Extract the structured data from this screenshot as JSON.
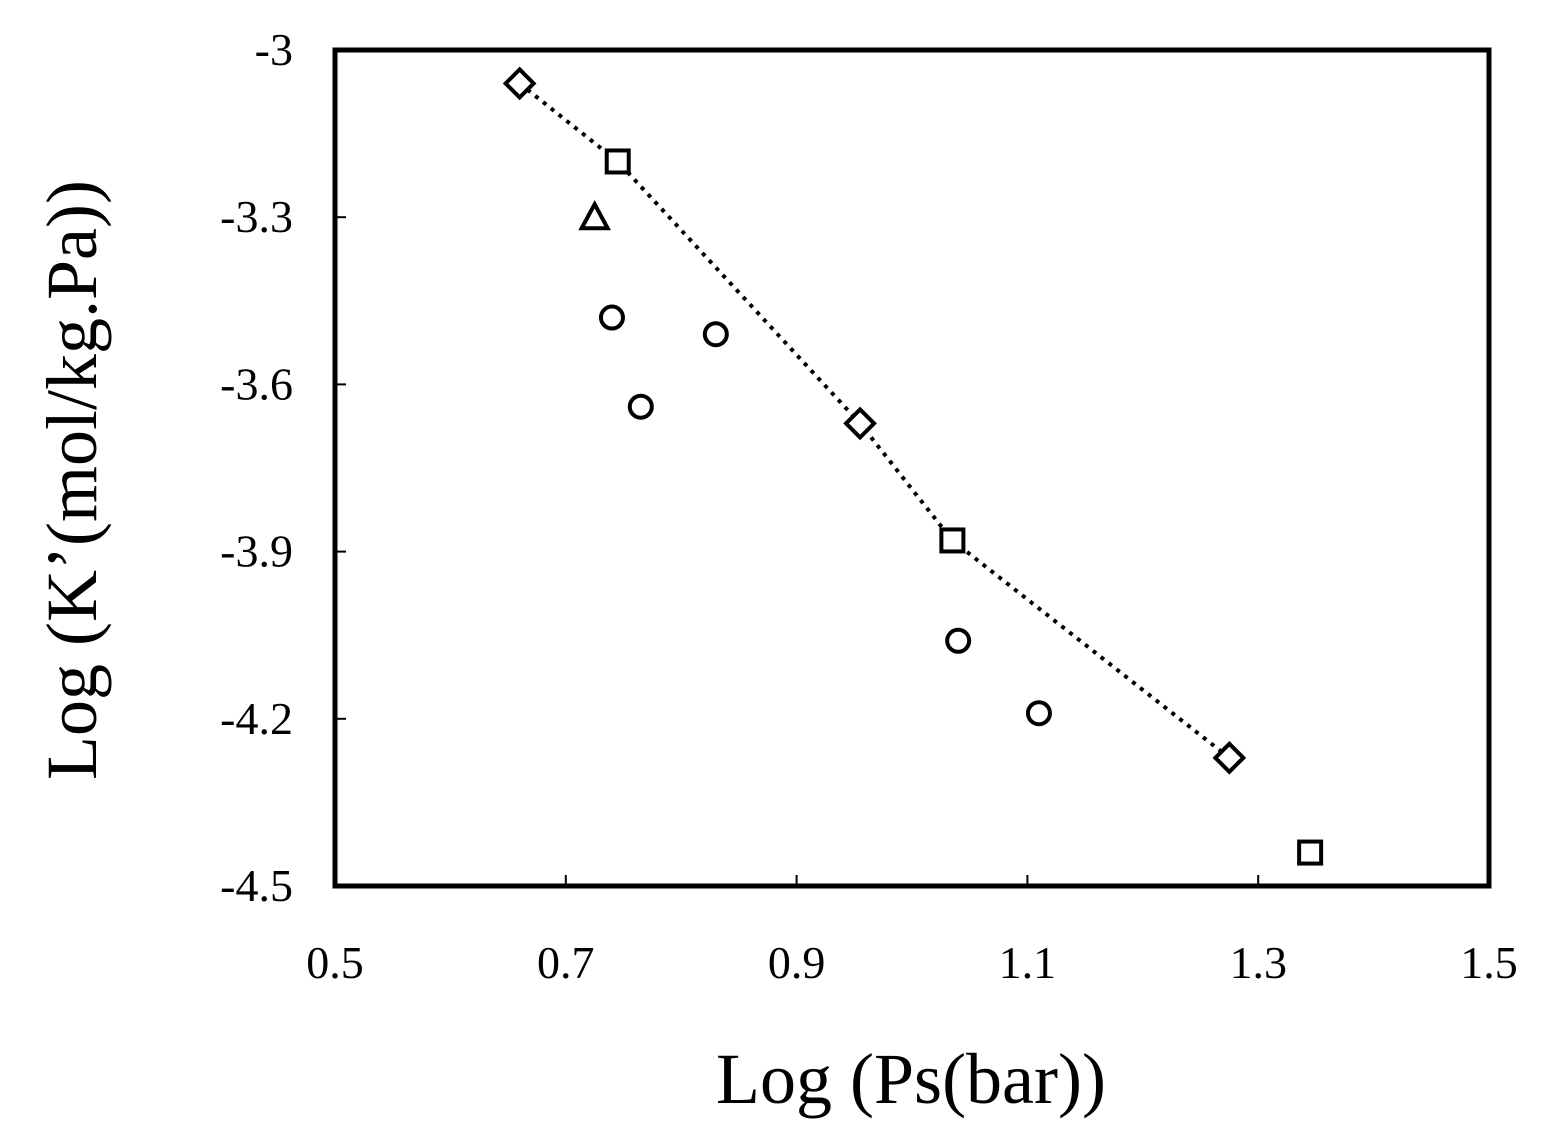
{
  "chart_data": {
    "type": "scatter",
    "title": "",
    "xlabel": "Log (Ps(bar))",
    "ylabel": "Log (K’(mol/kg.Pa))",
    "xlim": [
      0.5,
      1.5
    ],
    "ylim": [
      -4.5,
      -3
    ],
    "x_ticks": [
      0.5,
      0.7,
      0.9,
      1.1,
      1.3,
      1.5
    ],
    "x_tick_labels": [
      "0.5",
      "0.7",
      "0.9",
      "1.1",
      "1.3",
      "1.5"
    ],
    "y_ticks": [
      -3,
      -3.3,
      -3.6,
      -3.9,
      -4.2,
      -4.5
    ],
    "y_tick_labels": [
      "-3",
      "-3.3",
      "-3.6",
      "-3.9",
      "-4.2",
      "-4.5"
    ],
    "grid": false,
    "legend": "none",
    "series": [
      {
        "marker": "diamond",
        "points": [
          {
            "x": 0.66,
            "y": -3.06
          },
          {
            "x": 0.955,
            "y": -3.67
          },
          {
            "x": 1.275,
            "y": -4.27
          }
        ]
      },
      {
        "marker": "square",
        "points": [
          {
            "x": 0.745,
            "y": -3.2
          },
          {
            "x": 1.035,
            "y": -3.88
          },
          {
            "x": 1.345,
            "y": -4.44
          }
        ]
      },
      {
        "marker": "triangle",
        "points": [
          {
            "x": 0.725,
            "y": -3.3
          }
        ]
      },
      {
        "marker": "circle",
        "points": [
          {
            "x": 0.74,
            "y": -3.48
          },
          {
            "x": 0.765,
            "y": -3.64
          },
          {
            "x": 0.83,
            "y": -3.51
          },
          {
            "x": 1.04,
            "y": -4.06
          },
          {
            "x": 1.11,
            "y": -4.19
          }
        ]
      }
    ],
    "trendline": {
      "style": "dotted",
      "points": [
        {
          "x": 0.66,
          "y": -3.06
        },
        {
          "x": 0.745,
          "y": -3.2
        },
        {
          "x": 0.955,
          "y": -3.67
        },
        {
          "x": 1.035,
          "y": -3.88
        },
        {
          "x": 1.275,
          "y": -4.27
        }
      ]
    },
    "colors": {
      "axis": "#000000",
      "markers": "#000000",
      "background": "#ffffff"
    }
  }
}
